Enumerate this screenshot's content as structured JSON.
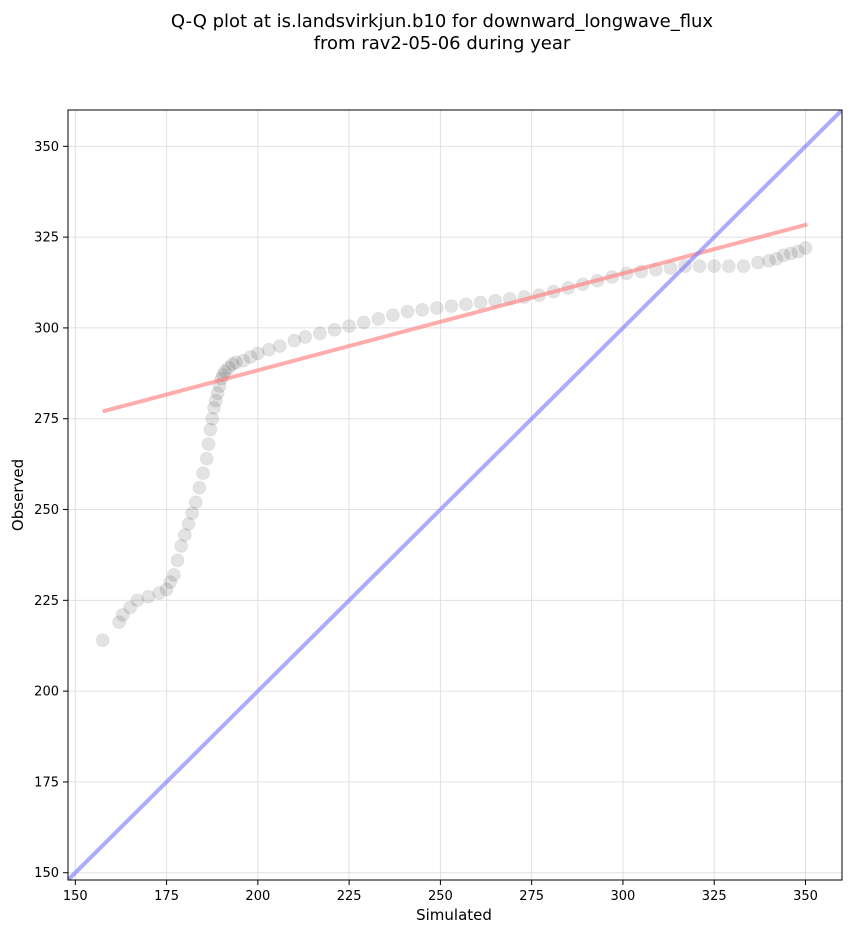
{
  "chart_data": {
    "type": "scatter",
    "title": "Q-Q plot at is.landsvirkjun.b10 for downward_longwave_flux",
    "subtitle": "from rav2-05-06 during year",
    "xlabel": "Simulated",
    "ylabel": "Observed",
    "xlim": [
      148,
      360
    ],
    "ylim": [
      148,
      360
    ],
    "xticks": [
      150,
      175,
      200,
      225,
      250,
      275,
      300,
      325,
      350
    ],
    "yticks": [
      150,
      175,
      200,
      225,
      250,
      275,
      300,
      325,
      350
    ],
    "grid": true,
    "legend": "none",
    "colors": {
      "points": "#000000",
      "identity_line": "#8080ff",
      "fit_line": "#ff8080",
      "grid": "#e0e0e0"
    },
    "identity_line": {
      "x": [
        148,
        360
      ],
      "y": [
        148,
        360
      ]
    },
    "fit_line": {
      "x": [
        157.5,
        350.5
      ],
      "y": [
        277,
        328.5
      ]
    },
    "series": [
      {
        "points_x": [
          157.5,
          162,
          163,
          165,
          167,
          170,
          173,
          175,
          176,
          177,
          178,
          179,
          180,
          181,
          182,
          183,
          184,
          185,
          186,
          186.5,
          187,
          187.5,
          188,
          188.5,
          189,
          189.5,
          190,
          190.5,
          191,
          192,
          193,
          194,
          196,
          198,
          200,
          203,
          206,
          210,
          213,
          217,
          221,
          225,
          229,
          233,
          237,
          241,
          245,
          249,
          253,
          257,
          261,
          265,
          269,
          273,
          277,
          281,
          285,
          289,
          293,
          297,
          301,
          305,
          309,
          313,
          317,
          321,
          325,
          329,
          333,
          337,
          340,
          342,
          344,
          346,
          348,
          350
        ],
        "points_y": [
          214,
          219,
          221,
          223,
          225,
          226,
          227,
          228,
          230,
          232,
          236,
          240,
          243,
          246,
          249,
          252,
          256,
          260,
          264,
          268,
          272,
          275,
          278,
          280,
          282,
          284,
          286,
          287,
          288,
          289,
          290,
          290.5,
          291,
          292,
          293,
          294,
          295,
          296.5,
          297.5,
          298.5,
          299.5,
          300.5,
          301.5,
          302.5,
          303.5,
          304.5,
          305,
          305.5,
          306,
          306.5,
          307,
          307.5,
          308,
          308.5,
          309,
          310,
          311,
          312,
          313,
          314,
          315,
          315.5,
          316,
          316.5,
          317,
          317,
          317,
          317,
          317,
          318,
          318.5,
          319,
          320,
          320.5,
          321,
          322
        ]
      }
    ]
  }
}
